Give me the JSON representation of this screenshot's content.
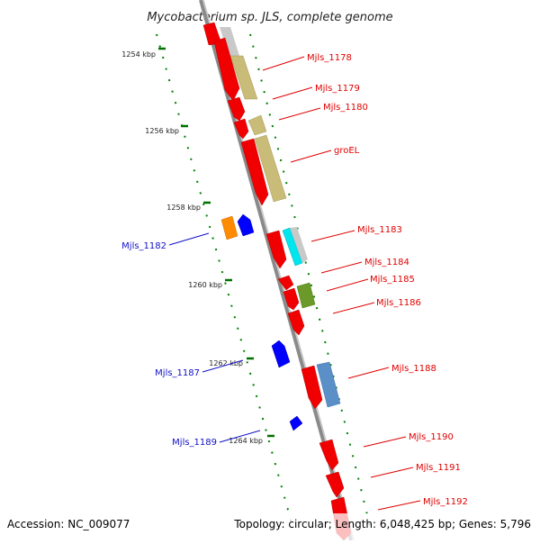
{
  "title": "Mycobacterium sp. JLS, complete genome",
  "footer": {
    "accession": "Accession: NC_009077",
    "info": "Topology: circular; Length: 6,048,425 bp; Genes: 5,796"
  },
  "ticks": [
    "1254 kbp",
    "1256 kbp",
    "1258 kbp",
    "1260 kbp",
    "1262 kbp",
    "1264 kbp"
  ],
  "gene_labels_forward": [
    "Mjls_1178",
    "Mjls_1179",
    "Mjls_1180",
    "groEL",
    "Mjls_1183",
    "Mjls_1184",
    "Mjls_1185",
    "Mjls_1186",
    "Mjls_1188",
    "Mjls_1190",
    "Mjls_1191",
    "Mjls_1192"
  ],
  "gene_labels_reverse": [
    "Mjls_1182",
    "Mjls_1187",
    "Mjls_1189"
  ],
  "colors": {
    "forward_gene": "#f00000",
    "reverse_gene": "#0000ff",
    "orange_gene": "#ff8c00",
    "cog_olive": "#c8bc78",
    "cog_cyan": "#00e5ee",
    "cog_grey": "#c8c8c8",
    "cog_green": "#6b9a2a",
    "cog_steel": "#5b8fc8",
    "backbone": "#909090",
    "tick_green": "#007700"
  }
}
